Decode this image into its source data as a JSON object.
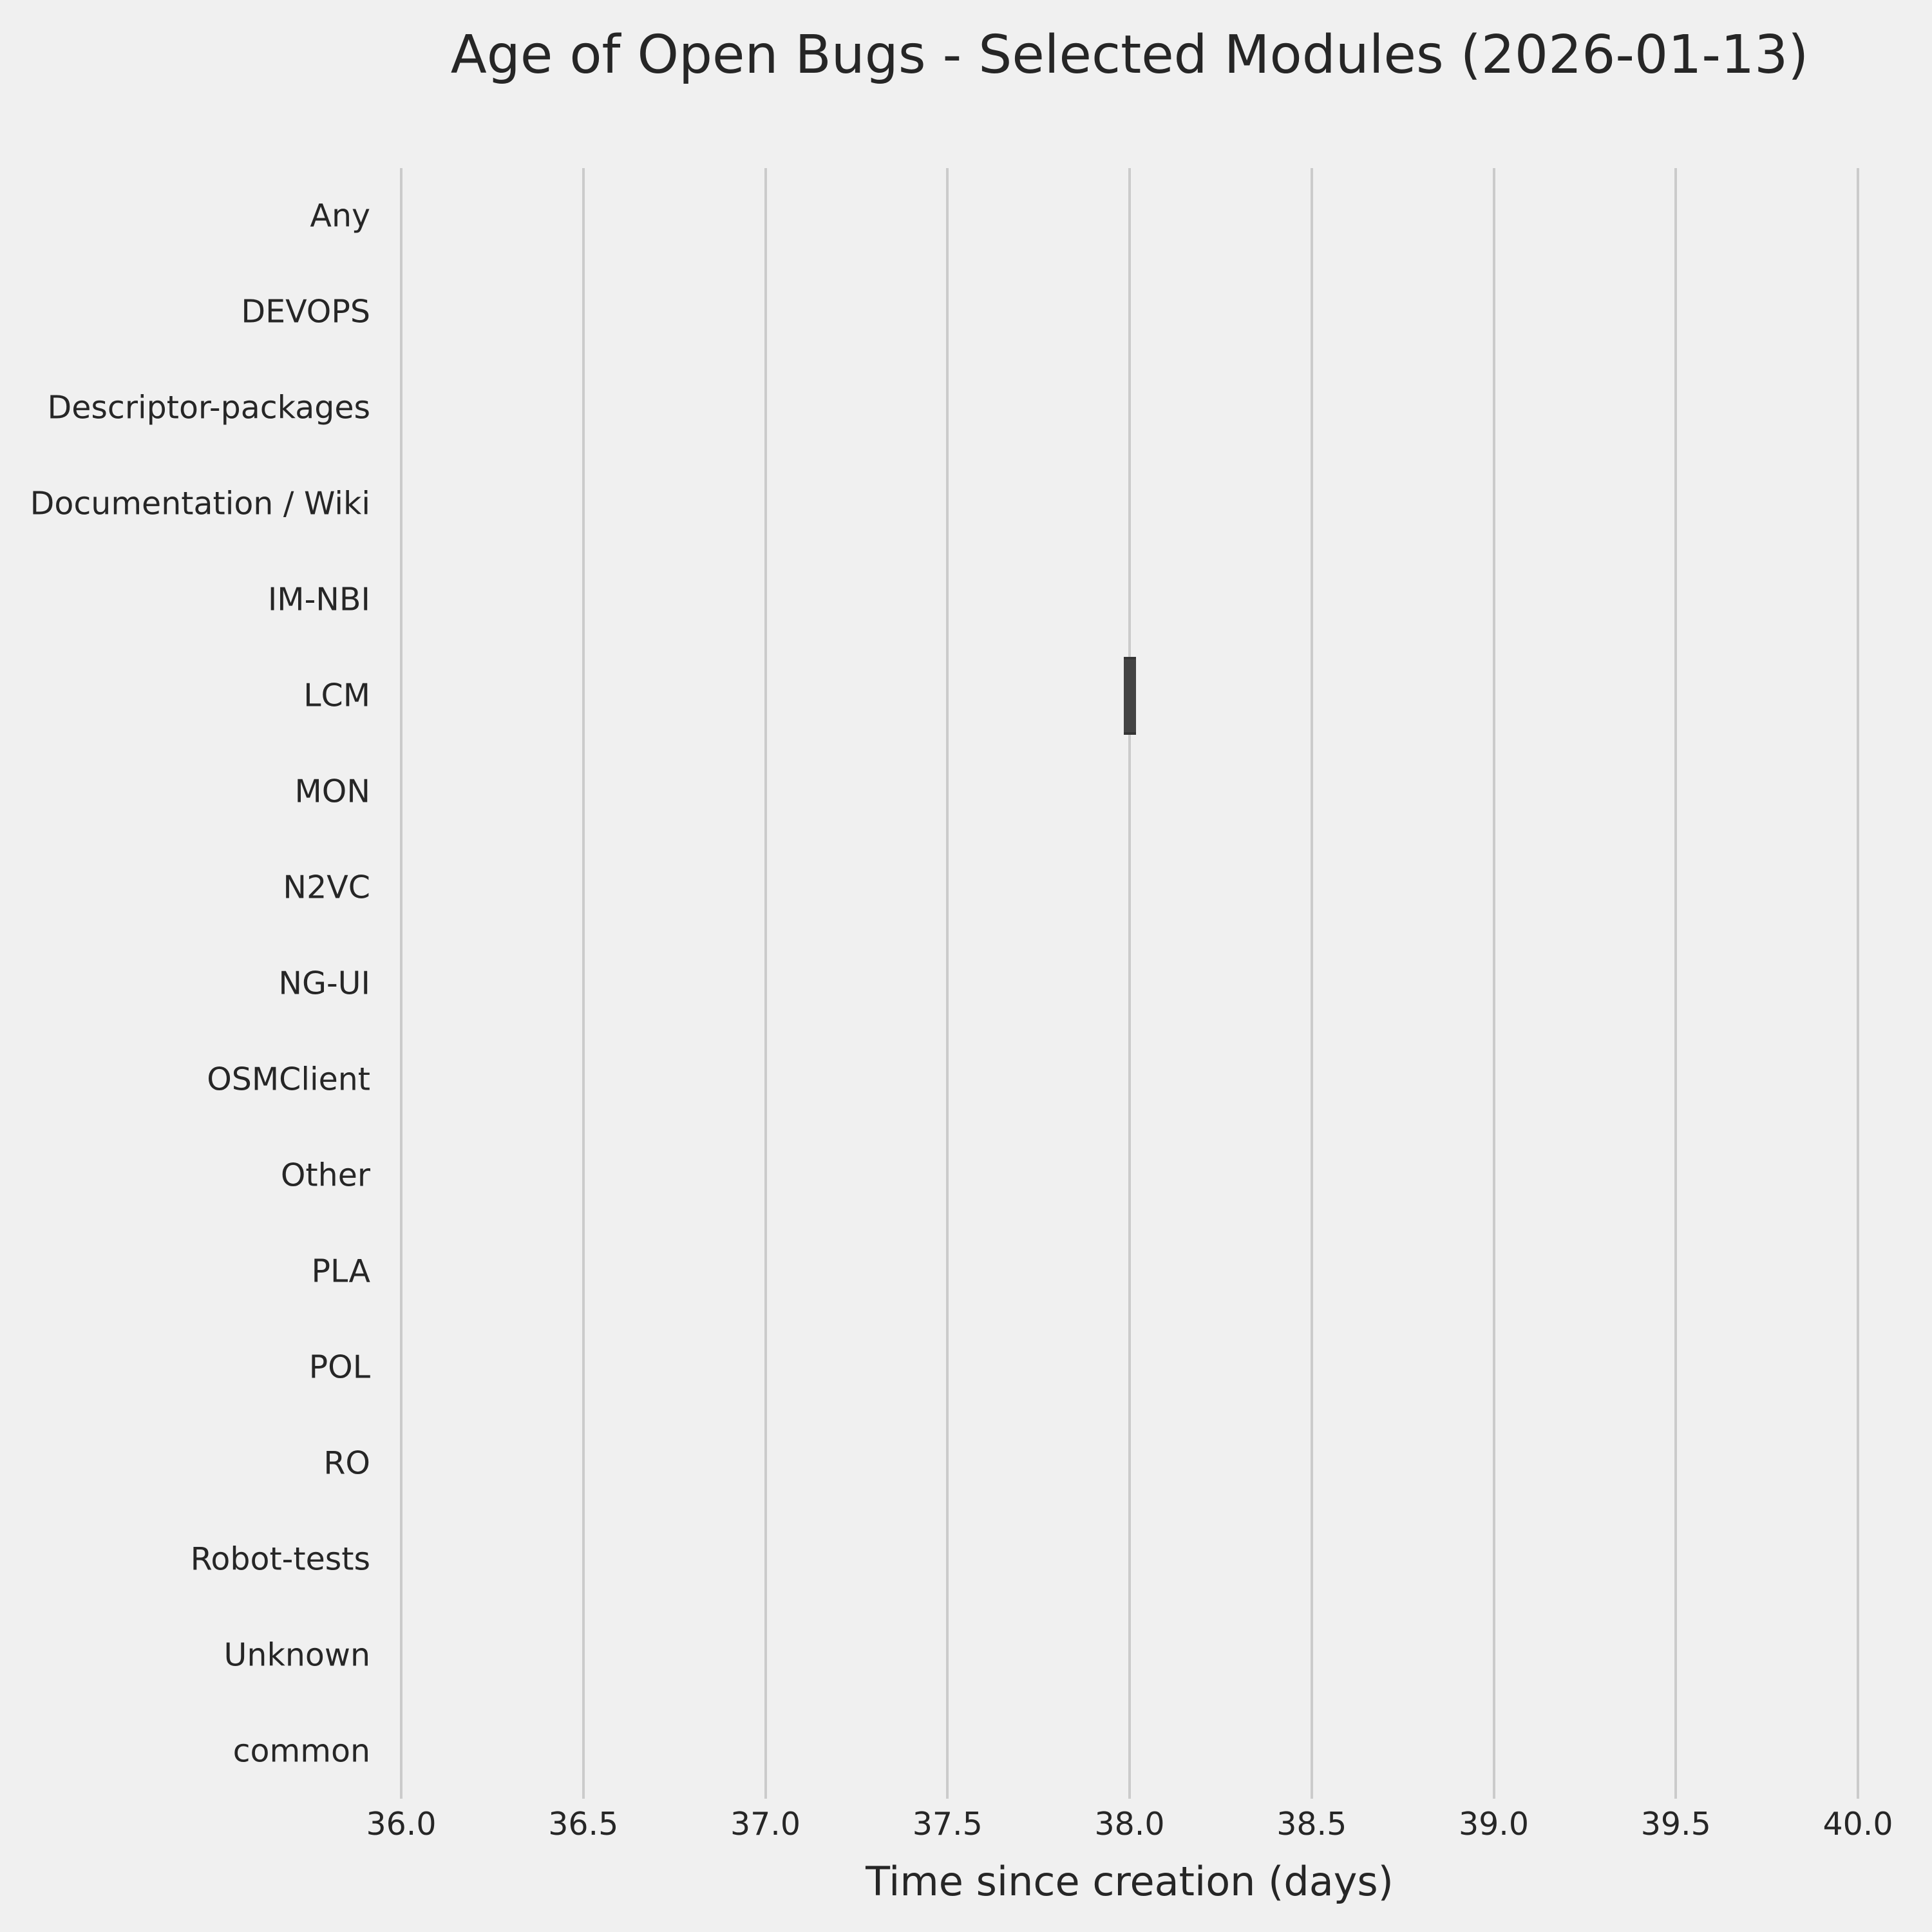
{
  "chart_data": {
    "type": "box",
    "orientation": "horizontal",
    "title": "Age of Open Bugs - Selected Modules (2026-01-13)",
    "xlabel": "Time since creation (days)",
    "ylabel": "",
    "xlim": [
      36.0,
      40.0
    ],
    "xticks": [
      "36.0",
      "36.5",
      "37.0",
      "37.5",
      "38.0",
      "38.5",
      "39.0",
      "39.5",
      "40.0"
    ],
    "grid": "vertical-only",
    "legend": "none",
    "categories": [
      "Any",
      "DEVOPS",
      "Descriptor-packages",
      "Documentation / Wiki",
      "IM-NBI",
      "LCM",
      "MON",
      "N2VC",
      "NG-UI",
      "OSMClient",
      "Other",
      "PLA",
      "POL",
      "RO",
      "Robot-tests",
      "Unknown",
      "common"
    ],
    "boxes": [
      {
        "category": "LCM",
        "min": 38.0,
        "q1": 38.0,
        "median": 38.0,
        "q3": 38.0,
        "max": 38.0
      }
    ],
    "colors": {
      "background": "#f0f0f0",
      "gridline": "#cbcbcb",
      "box_fill": "#434343",
      "box_edge": "#353535",
      "text": "#262626"
    }
  }
}
